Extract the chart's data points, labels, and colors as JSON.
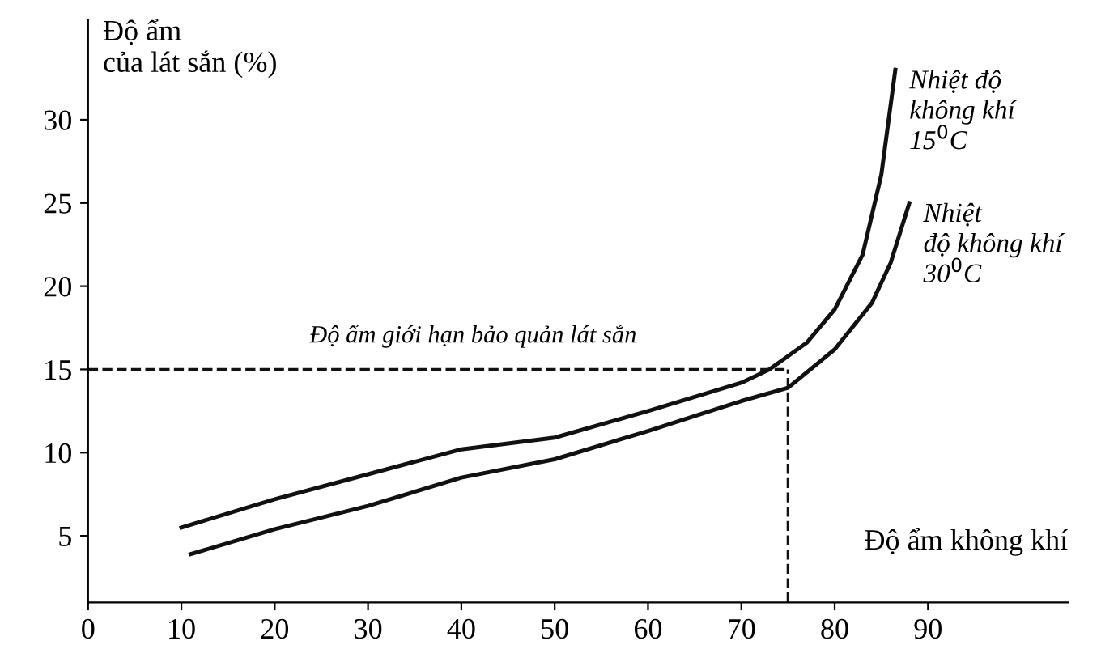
{
  "chart_data": {
    "type": "line",
    "xlabel": "Độ ẩm không khí",
    "ylabel": "Độ ẩm\ncủa lát sắn (%)",
    "xlim": [
      0,
      105
    ],
    "ylim": [
      1,
      36
    ],
    "xticks": [
      0,
      10,
      20,
      30,
      40,
      50,
      60,
      70,
      80,
      90
    ],
    "yticks": [
      5,
      10,
      15,
      20,
      25,
      30
    ],
    "grid": false,
    "marker": "none",
    "line_style": "solid",
    "series": [
      {
        "color": "#111111",
        "x": [
          10,
          20,
          30,
          40,
          50,
          60,
          70,
          73,
          77,
          80,
          83,
          85,
          86.5
        ],
        "values": [
          5.5,
          7.2,
          8.7,
          10.2,
          10.9,
          12.5,
          14.2,
          15,
          16.6,
          18.6,
          21.9,
          26.7,
          33
        ]
      },
      {
        "color": "#111111",
        "x": [
          11,
          20,
          30,
          40,
          50,
          60,
          70,
          75,
          80,
          84,
          86,
          88
        ],
        "values": [
          3.9,
          5.4,
          6.8,
          8.5,
          9.6,
          11.3,
          13.1,
          13.9,
          16.2,
          19,
          21.4,
          25
        ]
      }
    ],
    "ref_lines": [
      {
        "axis": "y",
        "value": 15,
        "label": "Độ ẩm giới hạn bảo quản lát sắn",
        "line_style": "dashed",
        "color": "#111111"
      },
      {
        "axis": "x",
        "value": 75,
        "line_style": "dashed",
        "color": "#111111"
      }
    ],
    "annotations": [
      {
        "text": "Nhiệt độ\nkhông khí\n15$^{0}$C",
        "x": 86.5,
        "y": 33
      },
      {
        "text": "Nhiệt\nđộ không khí\n30$^{0}$C",
        "x": 88,
        "y": 25
      }
    ]
  }
}
